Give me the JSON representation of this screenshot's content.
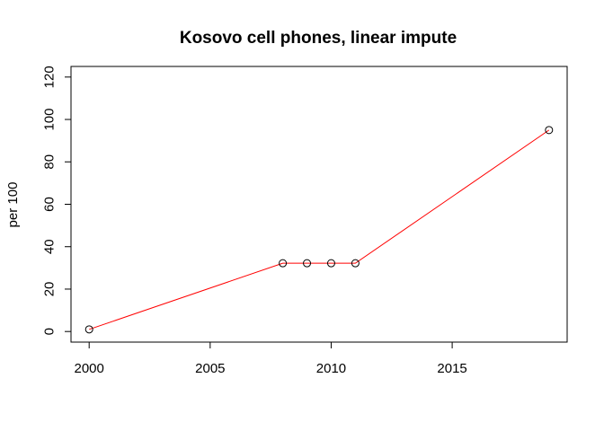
{
  "chart_data": {
    "type": "line",
    "title": "Kosovo cell phones, linear impute",
    "xlabel": "",
    "ylabel": "per 100",
    "xlim": [
      1999.25,
      2019.75
    ],
    "ylim": [
      -5,
      125
    ],
    "x_ticks": [
      2000,
      2005,
      2010,
      2015
    ],
    "y_ticks": [
      0,
      20,
      40,
      60,
      80,
      100,
      120
    ],
    "grid": false,
    "line_color": "#ff0000",
    "point_color": "#000000",
    "series": [
      {
        "x": [
          2000,
          2008,
          2009,
          2010,
          2011,
          2019
        ],
        "values": [
          1,
          32.2,
          32.2,
          32.2,
          32.2,
          95
        ]
      }
    ]
  }
}
